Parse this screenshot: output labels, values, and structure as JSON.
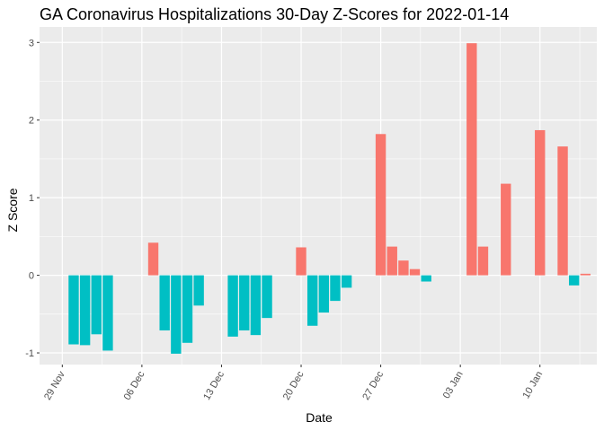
{
  "chart_data": {
    "type": "bar",
    "title": "GA Coronavirus Hospitalizations 30-Day Z-Scores for 2022-01-14",
    "xlabel": "Date",
    "ylabel": "Z Score",
    "ylim": [
      -1.15,
      3.2
    ],
    "yticks": [
      -1,
      0,
      1,
      2,
      3
    ],
    "xticks": [
      {
        "label": "29 Nov",
        "date": "2021-11-29"
      },
      {
        "label": "06 Dec",
        "date": "2021-12-06"
      },
      {
        "label": "13 Dec",
        "date": "2021-12-13"
      },
      {
        "label": "20 Dec",
        "date": "2021-12-20"
      },
      {
        "label": "27 Dec",
        "date": "2021-12-27"
      },
      {
        "label": "03 Jan",
        "date": "2022-01-03"
      },
      {
        "label": "10 Jan",
        "date": "2022-01-10"
      }
    ],
    "xlim": [
      "2021-11-27",
      "2022-01-15"
    ],
    "grid": true,
    "legend": "none",
    "colors": {
      "positive": "#F8766D",
      "negative": "#00BFC4",
      "panel": "#EBEBEB",
      "grid": "#FFFFFF"
    },
    "points": [
      {
        "date": "2021-11-30",
        "value": -0.89
      },
      {
        "date": "2021-12-01",
        "value": -0.9
      },
      {
        "date": "2021-12-02",
        "value": -0.76
      },
      {
        "date": "2021-12-03",
        "value": -0.97
      },
      {
        "date": "2021-12-07",
        "value": 0.42
      },
      {
        "date": "2021-12-08",
        "value": -0.71
      },
      {
        "date": "2021-12-09",
        "value": -1.01
      },
      {
        "date": "2021-12-10",
        "value": -0.87
      },
      {
        "date": "2021-12-11",
        "value": -0.39
      },
      {
        "date": "2021-12-14",
        "value": -0.79
      },
      {
        "date": "2021-12-15",
        "value": -0.71
      },
      {
        "date": "2021-12-16",
        "value": -0.77
      },
      {
        "date": "2021-12-17",
        "value": -0.55
      },
      {
        "date": "2021-12-20",
        "value": 0.36
      },
      {
        "date": "2021-12-21",
        "value": -0.65
      },
      {
        "date": "2021-12-22",
        "value": -0.48
      },
      {
        "date": "2021-12-23",
        "value": -0.33
      },
      {
        "date": "2021-12-24",
        "value": -0.16
      },
      {
        "date": "2021-12-27",
        "value": 1.82
      },
      {
        "date": "2021-12-28",
        "value": 0.37
      },
      {
        "date": "2021-12-29",
        "value": 0.19
      },
      {
        "date": "2021-12-30",
        "value": 0.08
      },
      {
        "date": "2021-12-31",
        "value": -0.08
      },
      {
        "date": "2022-01-04",
        "value": 2.99
      },
      {
        "date": "2022-01-05",
        "value": 0.37
      },
      {
        "date": "2022-01-07",
        "value": 1.18
      },
      {
        "date": "2022-01-10",
        "value": 1.87
      },
      {
        "date": "2022-01-12",
        "value": 1.66
      },
      {
        "date": "2022-01-13",
        "value": -0.13
      },
      {
        "date": "2022-01-14",
        "value": 0.02
      }
    ]
  }
}
